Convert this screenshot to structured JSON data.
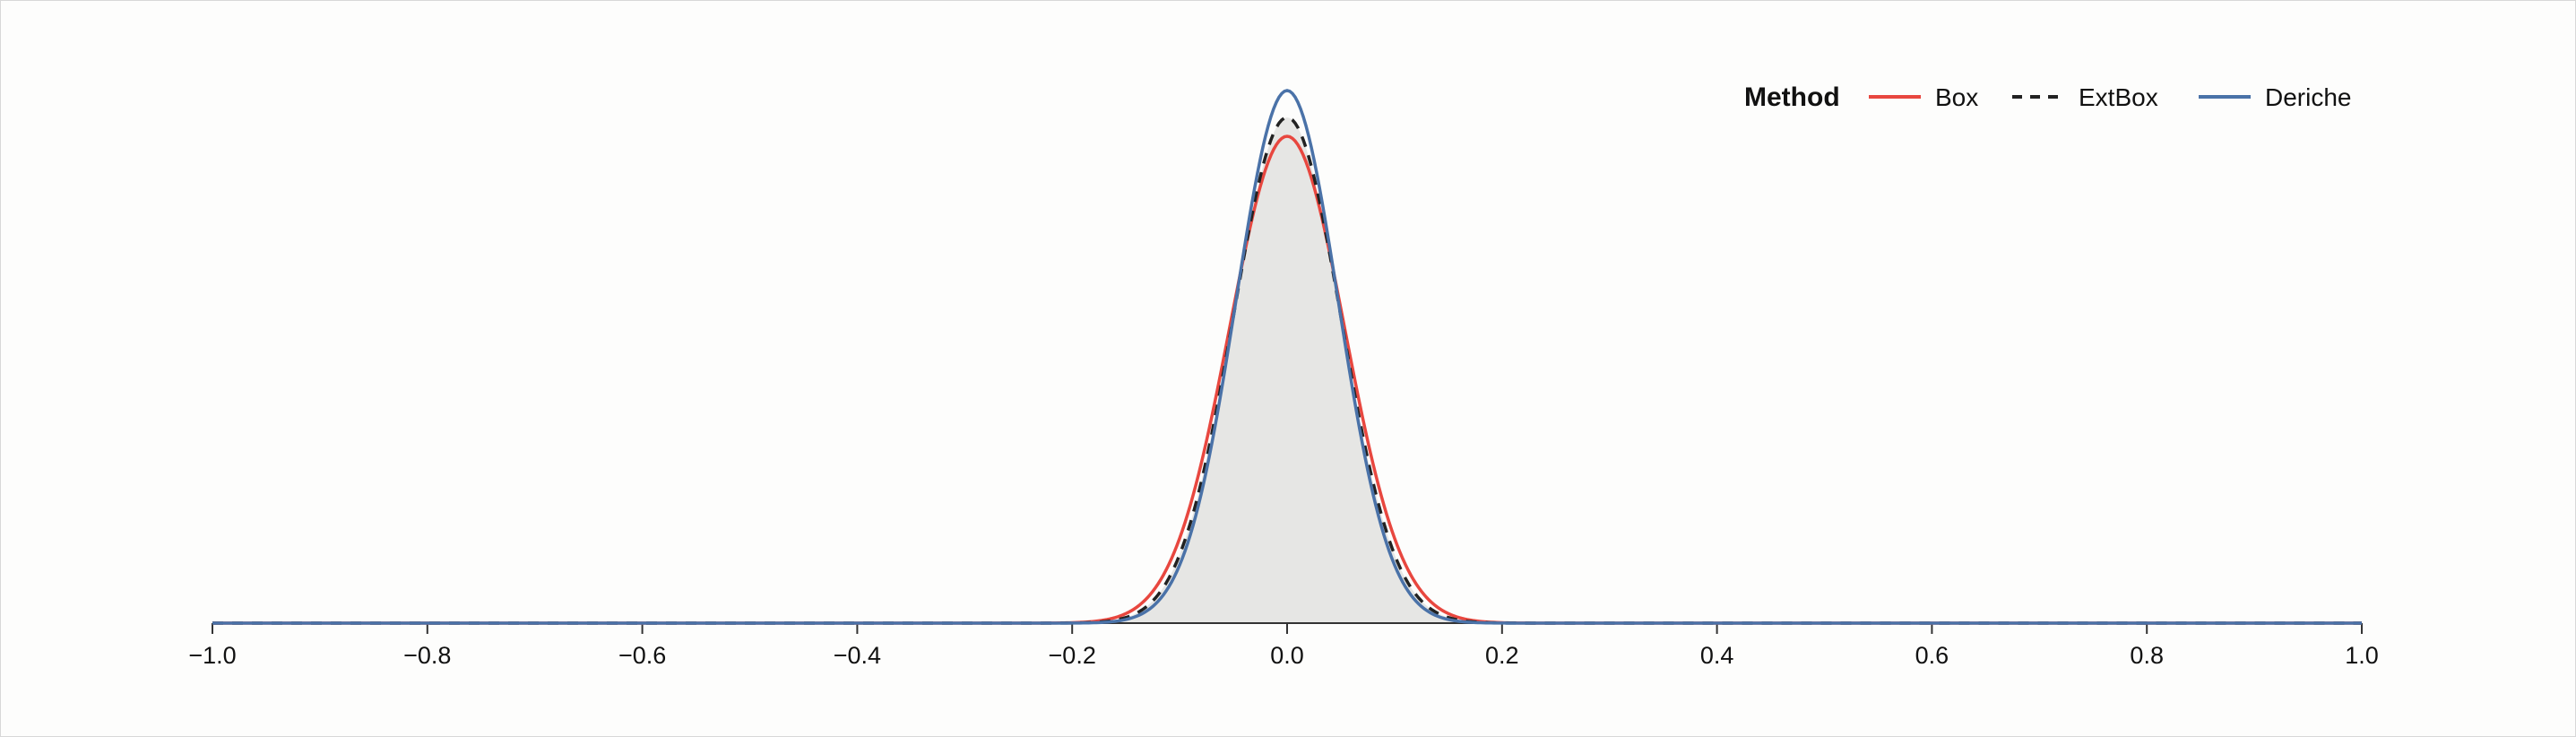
{
  "chart_data": {
    "type": "line",
    "xlabel": "",
    "ylabel": "",
    "xlim": [
      -1.0,
      1.0
    ],
    "x_ticks": [
      -1.0,
      -0.8,
      -0.6,
      -0.4,
      -0.2,
      0.0,
      0.2,
      0.4,
      0.6,
      0.8,
      1.0
    ],
    "x_tick_labels": [
      "−1.0",
      "−0.8",
      "−0.6",
      "−0.4",
      "−0.2",
      "0.0",
      "0.2",
      "0.4",
      "0.6",
      "0.8",
      "1.0"
    ],
    "grid": false,
    "legend": {
      "title": "Method",
      "position": "top-right",
      "entries": [
        "Box",
        "ExtBox",
        "Deriche"
      ]
    },
    "shaded_area": {
      "fill_color": "#e6e6e4",
      "description_center": 0.0,
      "sigma": 0.05,
      "peak": 0.94
    },
    "series": [
      {
        "name": "Box",
        "color": "#e8473f",
        "dash": "solid",
        "center": 0.0,
        "sigma": 0.0535,
        "peak": 0.905,
        "x": [
          -1.0,
          -0.2,
          -0.15,
          -0.1,
          -0.05,
          0.0,
          0.05,
          0.1,
          0.15,
          0.2,
          1.0
        ],
        "y": [
          0.0,
          0.0,
          0.02,
          0.16,
          0.58,
          0.905,
          0.58,
          0.16,
          0.02,
          0.0,
          0.0
        ]
      },
      {
        "name": "ExtBox",
        "color": "#222222",
        "dash": "dashed",
        "center": 0.0,
        "sigma": 0.05,
        "peak": 0.94,
        "x": [
          -1.0,
          -0.2,
          -0.15,
          -0.1,
          -0.05,
          0.0,
          0.05,
          0.1,
          0.15,
          0.2,
          1.0
        ],
        "y": [
          0.0,
          0.0,
          0.01,
          0.13,
          0.57,
          0.94,
          0.57,
          0.13,
          0.01,
          0.0,
          0.0
        ]
      },
      {
        "name": "Deriche",
        "color": "#4a72a8",
        "dash": "solid",
        "center": 0.0,
        "sigma": 0.0475,
        "peak": 0.99,
        "x": [
          -1.0,
          -0.2,
          -0.15,
          -0.1,
          -0.05,
          0.0,
          0.05,
          0.1,
          0.15,
          0.2,
          1.0
        ],
        "y": [
          0.0,
          0.0,
          0.01,
          0.11,
          0.57,
          0.99,
          0.57,
          0.11,
          0.01,
          0.0,
          0.0
        ]
      }
    ]
  }
}
